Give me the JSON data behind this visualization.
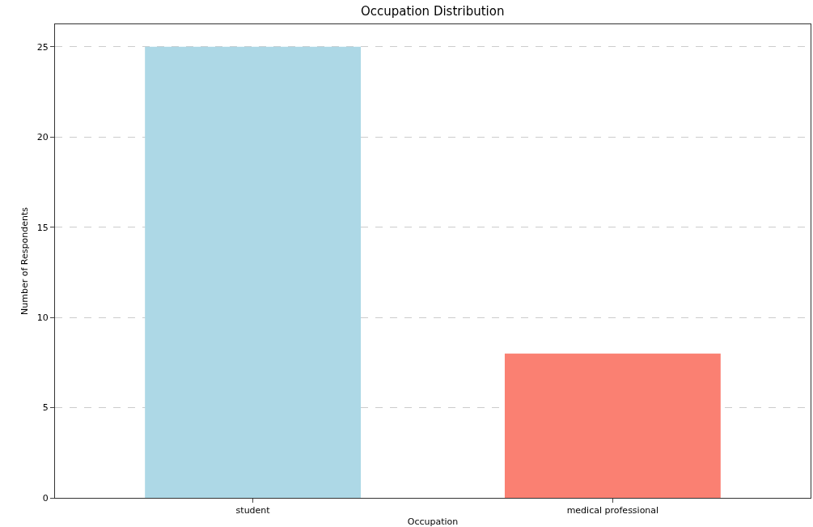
{
  "chart_data": {
    "type": "bar",
    "title": "Occupation Distribution",
    "xlabel": "Occupation",
    "ylabel": "Number of Respondents",
    "categories": [
      "student",
      "medical professional"
    ],
    "values": [
      25,
      8
    ],
    "colors": [
      "#add8e6",
      "#fa8072"
    ],
    "ylim": [
      0,
      26.25
    ],
    "yticks": [
      0,
      5,
      10,
      15,
      20,
      25
    ],
    "grid": "y"
  }
}
